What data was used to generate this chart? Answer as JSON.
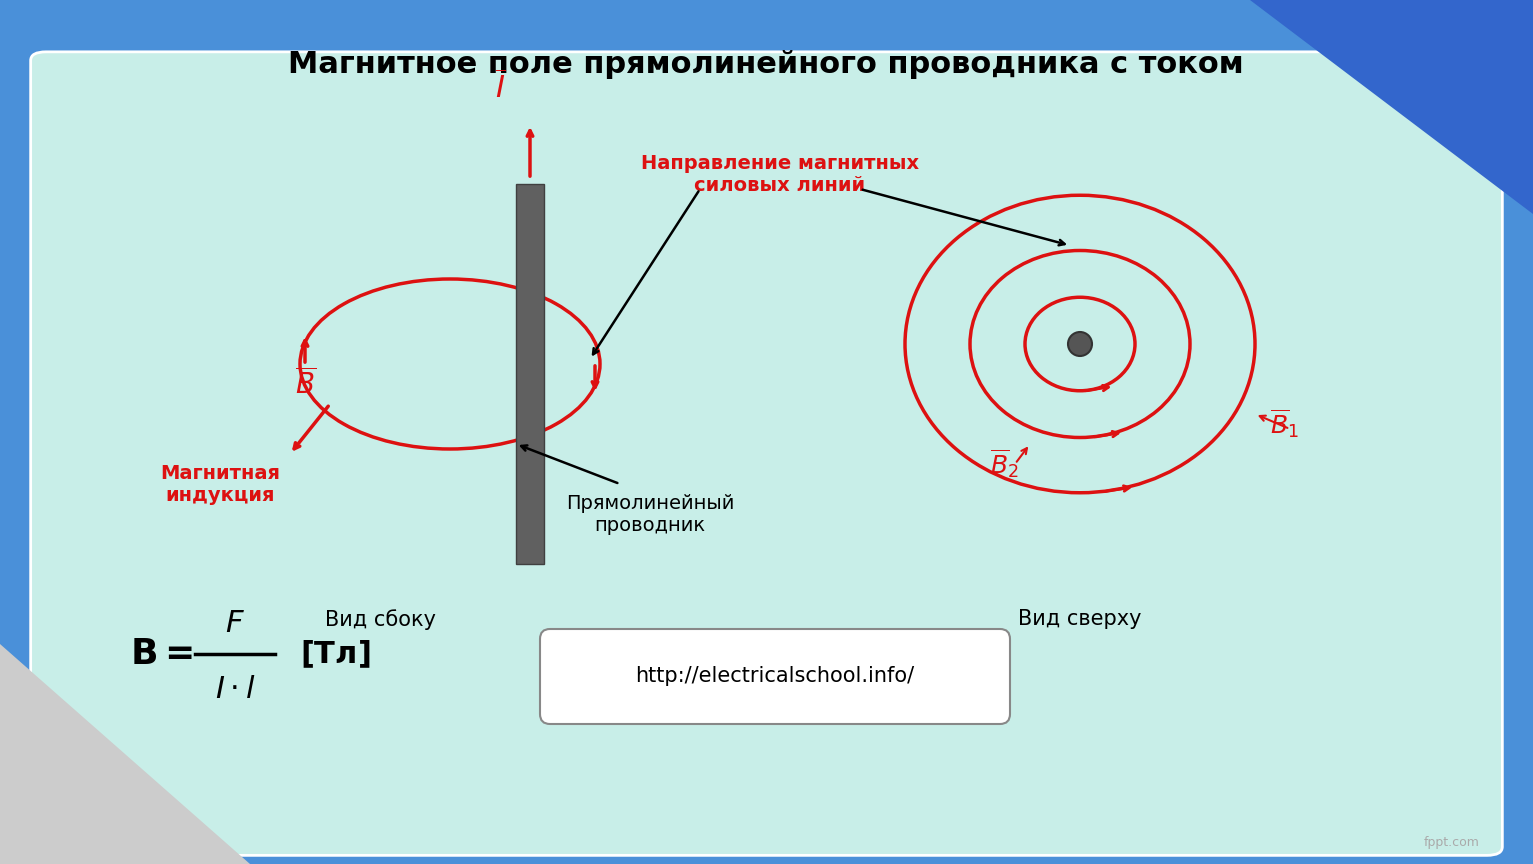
{
  "title": "Магнитное поле прямолинейного проводника с током",
  "title_fontsize": 22,
  "title_fontweight": "bold",
  "bg_color": "#c8eee8",
  "slide_bg": "#4a90d9",
  "red_color": "#dd1111",
  "dark_gray": "#555555",
  "label_side_view": "Вид сбоку",
  "label_top_view": "Вид сверху",
  "label_conductor": "Прямолинейный\nпроводник",
  "label_mag_ind": "Магнитная\nиндукция",
  "label_direction": "Направление магнитных\nсиловых линий",
  "label_formula": "B=",
  "label_url": "http://electricalschool.info/",
  "label_units": "[Тл]"
}
